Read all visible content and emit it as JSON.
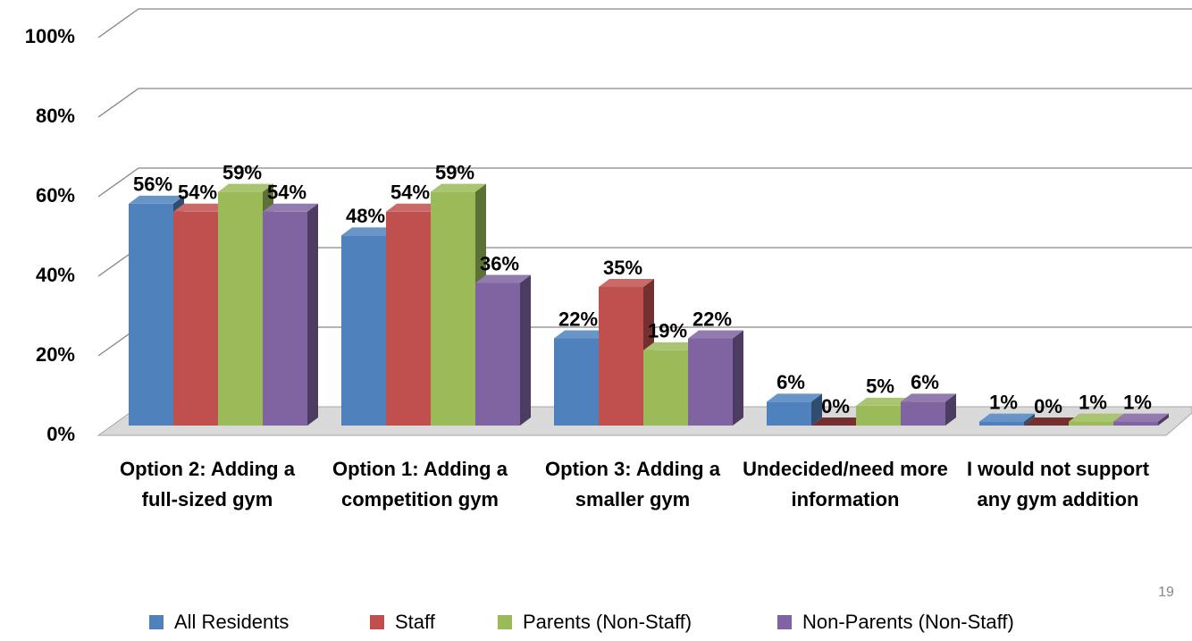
{
  "chart_data": {
    "type": "bar3d",
    "categories": [
      "Option 2: Adding a full-sized gym",
      "Option 1: Adding a competition gym",
      "Option 3: Adding a smaller gym",
      "Undecided/need more information",
      "I would not support any gym addition"
    ],
    "series": [
      {
        "name": "All Residents",
        "color": "#4f81bd",
        "values": [
          56,
          48,
          22,
          6,
          1
        ],
        "value_labels": [
          "56%",
          "48%",
          "22%",
          "6%",
          "1%"
        ]
      },
      {
        "name": "Staff",
        "color": "#c0504d",
        "values": [
          54,
          54,
          35,
          0,
          0
        ],
        "value_labels": [
          "54%",
          "54%",
          "35%",
          "0%",
          "0%"
        ]
      },
      {
        "name": "Parents (Non-Staff)",
        "color": "#9bbb59",
        "values": [
          59,
          59,
          19,
          5,
          1
        ],
        "value_labels": [
          "59%",
          "59%",
          "19%",
          "5%",
          "1%"
        ]
      },
      {
        "name": "Non-Parents (Non-Staff)",
        "color": "#8064a2",
        "values": [
          54,
          36,
          22,
          6,
          1
        ],
        "value_labels": [
          "54%",
          "36%",
          "22%",
          "6%",
          "1%"
        ]
      }
    ],
    "ylim": [
      0,
      100
    ],
    "yticks": [
      {
        "value": 0,
        "label": "0%"
      },
      {
        "value": 20,
        "label": "20%"
      },
      {
        "value": 40,
        "label": "40%"
      },
      {
        "value": 60,
        "label": "60%"
      },
      {
        "value": 80,
        "label": "80%"
      },
      {
        "value": 100,
        "label": "100%"
      }
    ],
    "grid": true,
    "legend": "bottom"
  },
  "page_number": "19"
}
